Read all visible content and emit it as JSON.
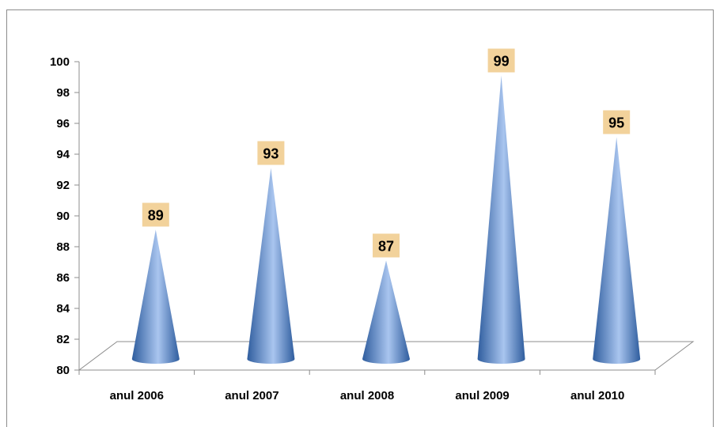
{
  "chart_data": {
    "type": "bar",
    "shape": "cone",
    "categories": [
      "anul 2006",
      "anul 2007",
      "anul 2008",
      "anul 2009",
      "anul 2010"
    ],
    "values": [
      89,
      93,
      87,
      99,
      95
    ],
    "data_labels": [
      "89",
      "93",
      "87",
      "99",
      "95"
    ],
    "title": "",
    "xlabel": "",
    "ylabel": "",
    "ylim": [
      80,
      100
    ],
    "yticks": [
      80,
      82,
      84,
      86,
      88,
      90,
      92,
      94,
      96,
      98,
      100
    ],
    "ytick_labels": [
      "80",
      "82",
      "84",
      "86",
      "88",
      "90",
      "92",
      "94",
      "96",
      "98",
      "100"
    ],
    "grid": false,
    "legend": "none",
    "colors": {
      "cone_dark": "#2f5d9e",
      "cone_mid": "#6d97d8",
      "cone_light": "#a9c5ef",
      "label_box": "#f2d29b",
      "axis": "#8c8c8c"
    }
  }
}
